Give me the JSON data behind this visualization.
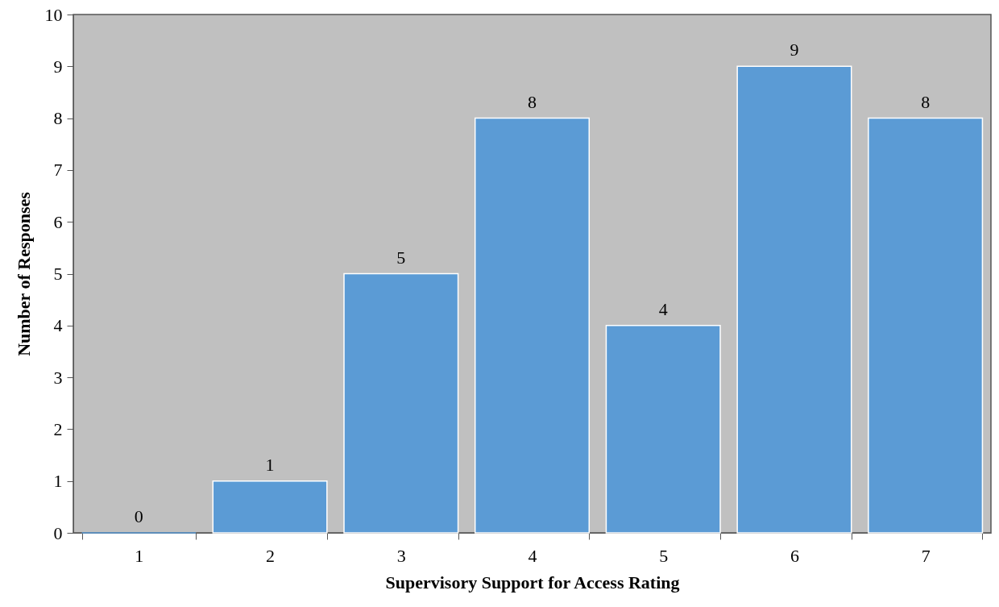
{
  "chart_data": {
    "type": "bar",
    "xlabel": "Supervisory Support for Access Rating",
    "ylabel": "Number of Responses",
    "categories": [
      "1",
      "2",
      "3",
      "4",
      "5",
      "6",
      "7"
    ],
    "values": [
      0,
      1,
      5,
      8,
      4,
      9,
      8
    ],
    "color": "#5b9bd5",
    "ylim": [
      0,
      10
    ],
    "yticks": [
      0,
      1,
      2,
      3,
      4,
      5,
      6,
      7,
      8,
      9,
      10
    ],
    "data_labels": true
  }
}
